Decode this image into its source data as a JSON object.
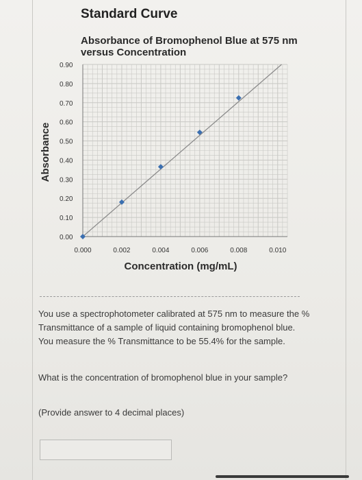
{
  "question": {
    "paragraph1": "You use a spectrophotometer calibrated at 575 nm to measure the % Transmittance of a sample of liquid containing bromophenol blue. You measure the % Transmittance to be 55.4% for the sample.",
    "paragraph2": "What is the concentration of bromophenol blue in your sample?",
    "paragraph3": "(Provide answer to 4 decimal places)",
    "answer_value": ""
  },
  "chart_data": {
    "type": "scatter",
    "title": "Standard Curve",
    "subtitle": "Absorbance of Bromophenol Blue at 575 nm versus Concentration",
    "xlabel": "Concentration (mg/mL)",
    "ylabel": "Absorbance",
    "xlim": [
      0,
      0.0105
    ],
    "ylim": [
      0,
      0.9
    ],
    "x_ticks": [
      "0.000",
      "0.002",
      "0.004",
      "0.006",
      "0.008",
      "0.010"
    ],
    "y_ticks": [
      "0.00",
      "0.10",
      "0.20",
      "0.30",
      "0.40",
      "0.50",
      "0.60",
      "0.70",
      "0.80",
      "0.90"
    ],
    "grid": true,
    "trendline": {
      "x": [
        0,
        0.0102
      ],
      "y": [
        0,
        0.9
      ]
    },
    "series": [
      {
        "x": [
          0,
          0.002,
          0.004,
          0.006,
          0.008
        ],
        "y": [
          0,
          0.18,
          0.365,
          0.545,
          0.725
        ]
      }
    ],
    "colors": {
      "marker": "#3b6fb0",
      "trendline": "#8a8a8a",
      "grid": "#c8c8c4"
    }
  }
}
